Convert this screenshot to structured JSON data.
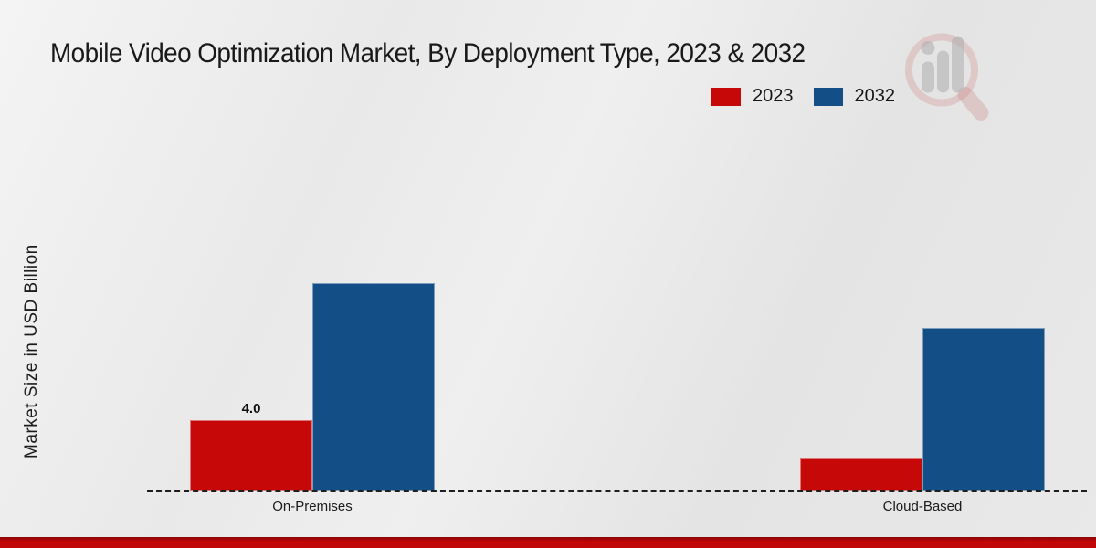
{
  "title": "Mobile Video Optimization Market, By Deployment Type, 2023 & 2032",
  "legend": {
    "items": [
      {
        "label": "2023",
        "color": "#c70808"
      },
      {
        "label": "2032",
        "color": "#134e87"
      }
    ]
  },
  "watermark_icon": "magnifier-bar-chart-logo",
  "footer": {
    "color": "#c10707"
  },
  "chart_data": {
    "type": "bar",
    "title": "Mobile Video Optimization Market, By Deployment Type, 2023 & 2032",
    "xlabel": "",
    "ylabel": "Market Size in USD Billion",
    "categories": [
      "On-Premises",
      "Cloud-Based"
    ],
    "series": [
      {
        "name": "2023",
        "color": "#c70808",
        "values": [
          4.0,
          1.85
        ],
        "data_labels": [
          "4.0",
          null
        ]
      },
      {
        "name": "2032",
        "color": "#134e87",
        "values": [
          11.7,
          9.2
        ],
        "data_labels": [
          null,
          null
        ]
      }
    ],
    "ylim": [
      0,
      22.5
    ],
    "grid": false,
    "legend_position": "top-right",
    "baseline_style": "dashed",
    "data_label_note": "only On-Premises 2023 bar is labeled"
  }
}
